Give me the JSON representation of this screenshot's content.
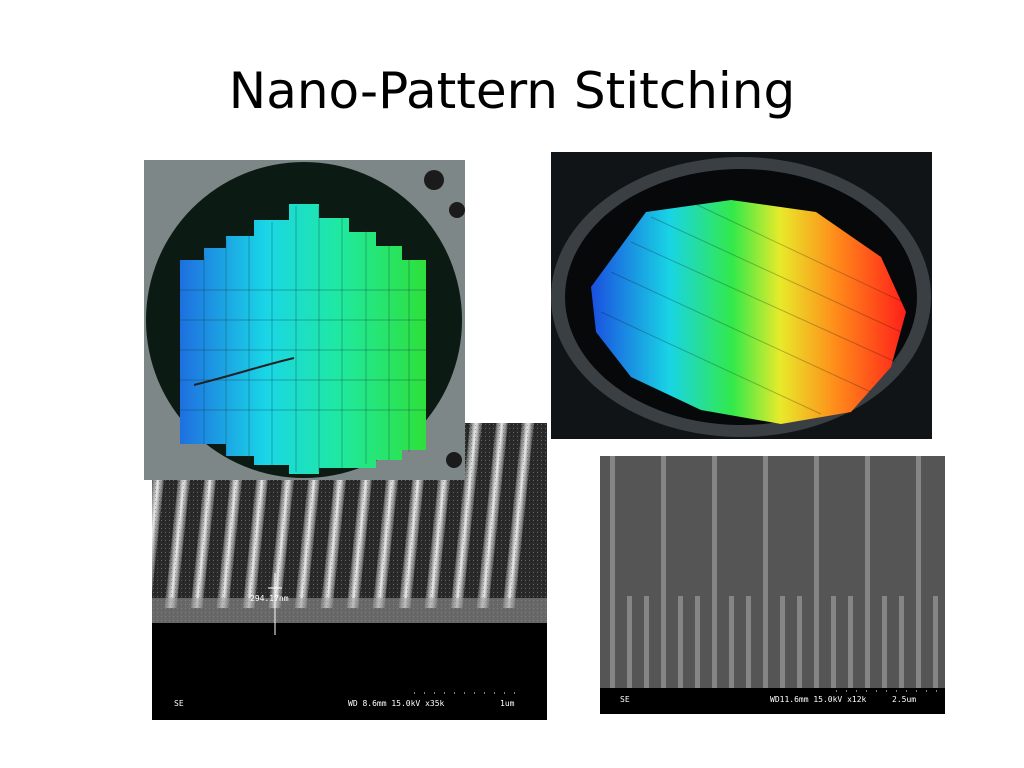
{
  "slide": {
    "title": "Nano-Pattern Stitching"
  },
  "sem_left": {
    "measurement": "294.17nm",
    "mode": "SE",
    "info": "WD 8.6mm 15.0kV x35k",
    "scale": "1um"
  },
  "sem_right": {
    "mode": "SE",
    "info": "WD11.6mm 15.0kV x12k",
    "scale": "2.5um"
  }
}
